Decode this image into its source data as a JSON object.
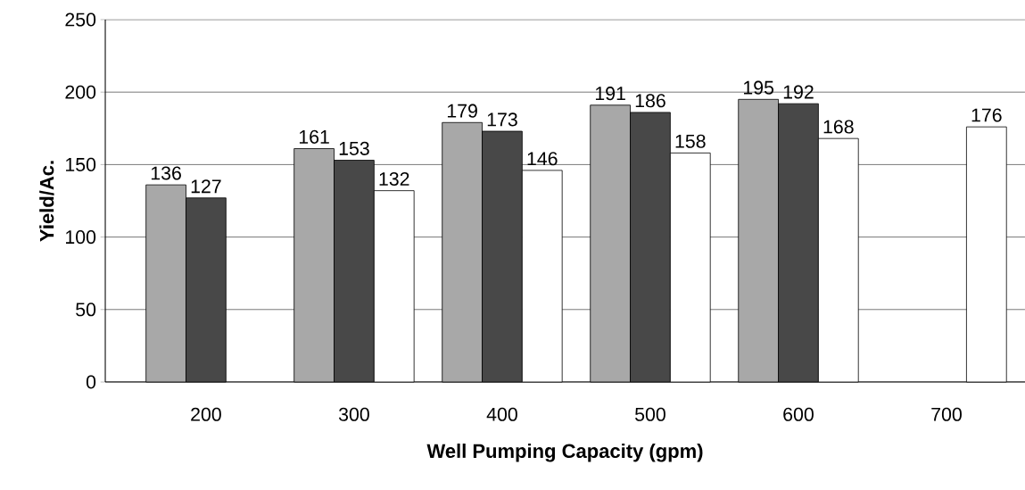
{
  "chart_data": {
    "type": "bar",
    "xlabel": "Well Pumping Capacity (gpm)",
    "ylabel": "Yield/Ac.",
    "categories": [
      "200",
      "300",
      "400",
      "500",
      "600",
      "700"
    ],
    "series": [
      {
        "color": "#a8a8a8",
        "values": [
          136,
          161,
          179,
          191,
          195,
          null
        ]
      },
      {
        "color": "#484848",
        "values": [
          127,
          153,
          173,
          186,
          192,
          null
        ]
      },
      {
        "color": "#ffffff",
        "values": [
          null,
          132,
          146,
          158,
          168,
          176
        ]
      }
    ],
    "ylim": [
      0,
      250
    ],
    "yticks": [
      0,
      50,
      100,
      150,
      200,
      250
    ],
    "grid": "y",
    "data_labels": true
  }
}
